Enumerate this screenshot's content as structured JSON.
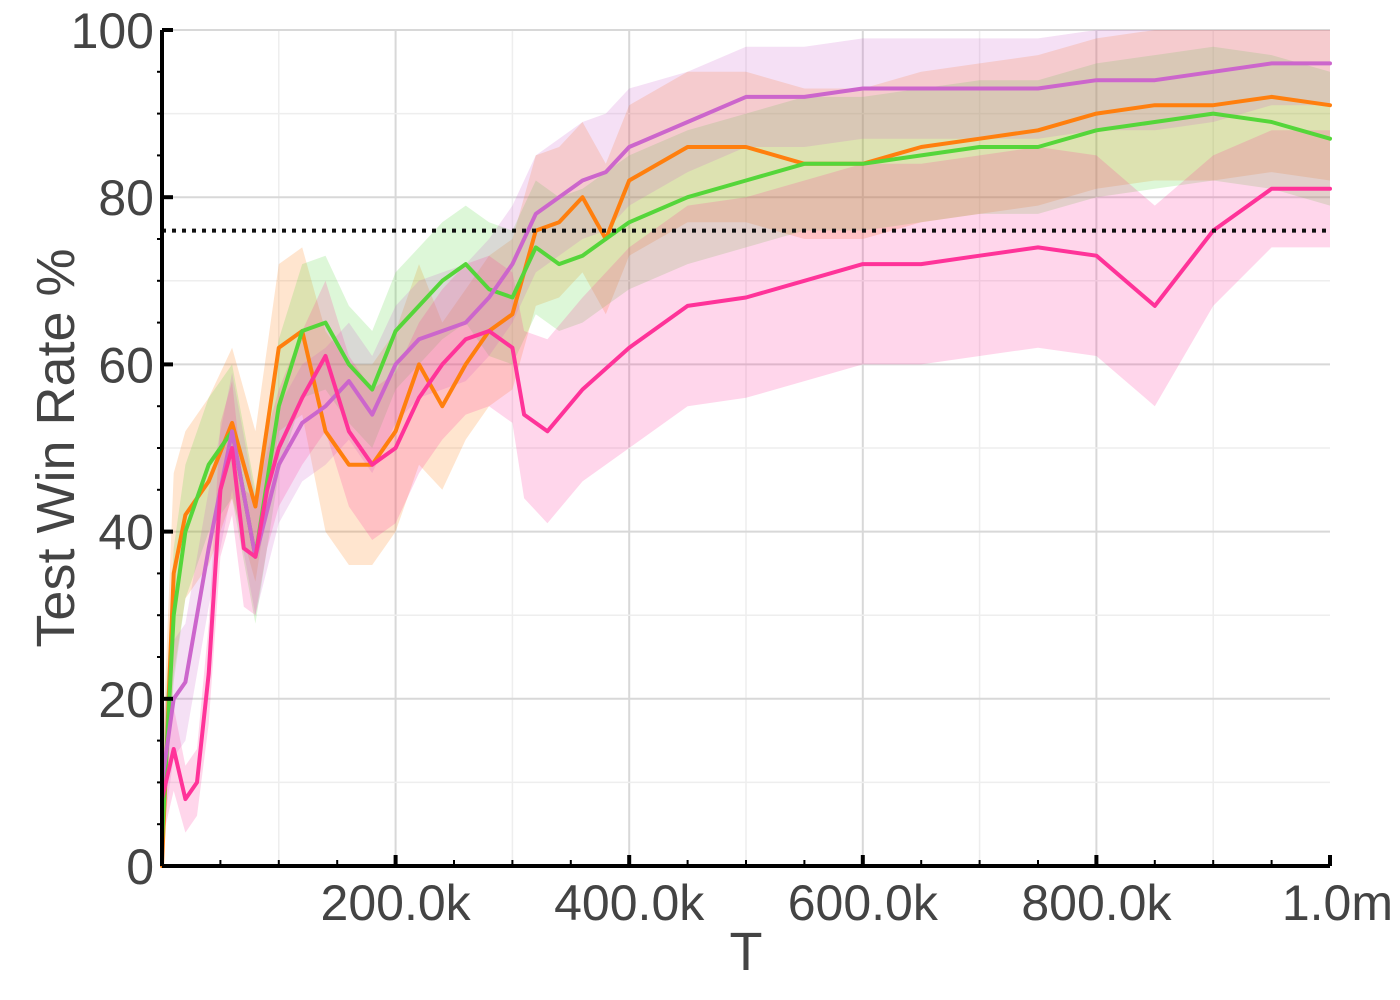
{
  "chart_data": {
    "type": "line",
    "xlabel": "T",
    "ylabel": "Test Win Rate %",
    "xlim": [
      0,
      1000000
    ],
    "ylim": [
      0,
      100
    ],
    "grid": true,
    "x_ticks": [
      200000,
      400000,
      600000,
      800000,
      1000000
    ],
    "x_tick_labels": [
      "200.0k",
      "400.0k",
      "600.0k",
      "800.0k",
      "1.0m"
    ],
    "y_ticks": [
      0,
      20,
      40,
      60,
      80,
      100
    ],
    "y_tick_labels": [
      "0",
      "20",
      "40",
      "60",
      "80",
      "100"
    ],
    "reference_line": {
      "y": 76,
      "style": "dotted",
      "color": "#111111"
    },
    "series": [
      {
        "color": "#ff7f0e",
        "x": [
          0,
          10000,
          20000,
          40000,
          60000,
          80000,
          100000,
          120000,
          140000,
          160000,
          180000,
          200000,
          220000,
          240000,
          260000,
          280000,
          300000,
          320000,
          340000,
          360000,
          380000,
          400000,
          450000,
          500000,
          550000,
          600000,
          650000,
          700000,
          750000,
          800000,
          850000,
          900000,
          950000,
          1000000
        ],
        "y": [
          0,
          35,
          42,
          46,
          53,
          43,
          62,
          64,
          52,
          48,
          48,
          52,
          60,
          55,
          60,
          64,
          66,
          76,
          77,
          80,
          75,
          82,
          86,
          86,
          84,
          84,
          86,
          87,
          88,
          90,
          91,
          91,
          92,
          91
        ],
        "band": [
          12,
          12,
          10,
          10,
          9,
          9,
          10,
          10,
          12,
          12,
          12,
          12,
          12,
          10,
          9,
          9,
          9,
          9,
          9,
          9,
          9,
          9,
          9,
          9,
          9,
          9,
          9,
          9,
          9,
          9,
          9,
          9,
          9,
          9
        ]
      },
      {
        "color": "#55d63a",
        "x": [
          0,
          10000,
          20000,
          40000,
          60000,
          80000,
          100000,
          120000,
          140000,
          160000,
          180000,
          200000,
          220000,
          240000,
          260000,
          280000,
          300000,
          320000,
          340000,
          360000,
          380000,
          400000,
          450000,
          500000,
          550000,
          600000,
          650000,
          700000,
          750000,
          800000,
          850000,
          900000,
          950000,
          1000000
        ],
        "y": [
          3,
          30,
          40,
          48,
          52,
          37,
          55,
          64,
          65,
          60,
          57,
          64,
          67,
          70,
          72,
          69,
          68,
          74,
          72,
          73,
          75,
          77,
          80,
          82,
          84,
          84,
          85,
          86,
          86,
          88,
          89,
          90,
          89,
          87
        ],
        "band": [
          8,
          8,
          8,
          8,
          8,
          8,
          8,
          8,
          8,
          7,
          7,
          7,
          7,
          7,
          7,
          8,
          8,
          8,
          8,
          8,
          8,
          8,
          8,
          8,
          8,
          8,
          8,
          8,
          8,
          8,
          8,
          8,
          8,
          8
        ]
      },
      {
        "color": "#cc66cc",
        "x": [
          0,
          10000,
          20000,
          40000,
          60000,
          80000,
          100000,
          120000,
          140000,
          160000,
          180000,
          200000,
          220000,
          240000,
          260000,
          280000,
          300000,
          320000,
          340000,
          360000,
          380000,
          400000,
          450000,
          500000,
          550000,
          600000,
          650000,
          700000,
          750000,
          800000,
          850000,
          900000,
          950000,
          1000000
        ],
        "y": [
          10,
          20,
          22,
          38,
          52,
          37,
          48,
          53,
          55,
          58,
          54,
          60,
          63,
          64,
          65,
          68,
          72,
          78,
          80,
          82,
          83,
          86,
          89,
          92,
          92,
          93,
          93,
          93,
          93,
          94,
          94,
          95,
          96,
          96
        ],
        "band": [
          7,
          7,
          7,
          7,
          7,
          7,
          7,
          7,
          7,
          7,
          7,
          7,
          7,
          7,
          7,
          7,
          7,
          7,
          7,
          7,
          7,
          7,
          6,
          6,
          6,
          6,
          6,
          6,
          6,
          6,
          6,
          6,
          5,
          5
        ]
      },
      {
        "color": "#ff3399",
        "x": [
          0,
          10000,
          20000,
          30000,
          40000,
          50000,
          60000,
          70000,
          80000,
          90000,
          100000,
          120000,
          140000,
          160000,
          180000,
          200000,
          220000,
          240000,
          260000,
          280000,
          300000,
          310000,
          330000,
          360000,
          400000,
          450000,
          500000,
          550000,
          600000,
          650000,
          700000,
          750000,
          800000,
          850000,
          900000,
          950000,
          1000000
        ],
        "y": [
          8,
          14,
          8,
          10,
          23,
          45,
          50,
          38,
          37,
          45,
          50,
          56,
          61,
          52,
          48,
          50,
          56,
          60,
          63,
          64,
          62,
          54,
          52,
          57,
          62,
          67,
          68,
          70,
          72,
          72,
          73,
          74,
          73,
          67,
          76,
          81,
          81
        ],
        "band": [
          5,
          5,
          4,
          4,
          6,
          8,
          8,
          7,
          7,
          7,
          7,
          8,
          9,
          9,
          9,
          9,
          9,
          9,
          9,
          9,
          9,
          10,
          11,
          11,
          12,
          12,
          12,
          12,
          12,
          12,
          12,
          12,
          12,
          12,
          9,
          7,
          7
        ]
      }
    ]
  }
}
